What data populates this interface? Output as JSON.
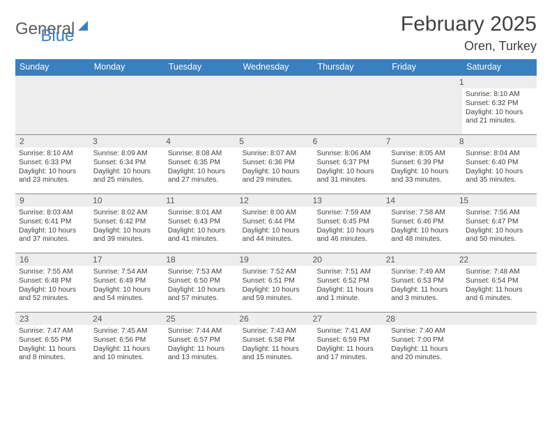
{
  "brand": {
    "word1": "General",
    "word2": "Blue"
  },
  "title": "February 2025",
  "location": "Oren, Turkey",
  "colors": {
    "accent": "#3a7fc0",
    "grey_bg": "#ededed",
    "text": "#404040",
    "rule": "#888888"
  },
  "days_of_week": [
    "Sunday",
    "Monday",
    "Tuesday",
    "Wednesday",
    "Thursday",
    "Friday",
    "Saturday"
  ],
  "weeks": [
    {
      "numbers": [
        "",
        "",
        "",
        "",
        "",
        "",
        "1"
      ],
      "details": [
        null,
        null,
        null,
        null,
        null,
        null,
        {
          "sunrise": "Sunrise: 8:10 AM",
          "sunset": "Sunset: 6:32 PM",
          "dl1": "Daylight: 10 hours",
          "dl2": "and 21 minutes."
        }
      ]
    },
    {
      "numbers": [
        "2",
        "3",
        "4",
        "5",
        "6",
        "7",
        "8"
      ],
      "details": [
        {
          "sunrise": "Sunrise: 8:10 AM",
          "sunset": "Sunset: 6:33 PM",
          "dl1": "Daylight: 10 hours",
          "dl2": "and 23 minutes."
        },
        {
          "sunrise": "Sunrise: 8:09 AM",
          "sunset": "Sunset: 6:34 PM",
          "dl1": "Daylight: 10 hours",
          "dl2": "and 25 minutes."
        },
        {
          "sunrise": "Sunrise: 8:08 AM",
          "sunset": "Sunset: 6:35 PM",
          "dl1": "Daylight: 10 hours",
          "dl2": "and 27 minutes."
        },
        {
          "sunrise": "Sunrise: 8:07 AM",
          "sunset": "Sunset: 6:36 PM",
          "dl1": "Daylight: 10 hours",
          "dl2": "and 29 minutes."
        },
        {
          "sunrise": "Sunrise: 8:06 AM",
          "sunset": "Sunset: 6:37 PM",
          "dl1": "Daylight: 10 hours",
          "dl2": "and 31 minutes."
        },
        {
          "sunrise": "Sunrise: 8:05 AM",
          "sunset": "Sunset: 6:39 PM",
          "dl1": "Daylight: 10 hours",
          "dl2": "and 33 minutes."
        },
        {
          "sunrise": "Sunrise: 8:04 AM",
          "sunset": "Sunset: 6:40 PM",
          "dl1": "Daylight: 10 hours",
          "dl2": "and 35 minutes."
        }
      ]
    },
    {
      "numbers": [
        "9",
        "10",
        "11",
        "12",
        "13",
        "14",
        "15"
      ],
      "details": [
        {
          "sunrise": "Sunrise: 8:03 AM",
          "sunset": "Sunset: 6:41 PM",
          "dl1": "Daylight: 10 hours",
          "dl2": "and 37 minutes."
        },
        {
          "sunrise": "Sunrise: 8:02 AM",
          "sunset": "Sunset: 6:42 PM",
          "dl1": "Daylight: 10 hours",
          "dl2": "and 39 minutes."
        },
        {
          "sunrise": "Sunrise: 8:01 AM",
          "sunset": "Sunset: 6:43 PM",
          "dl1": "Daylight: 10 hours",
          "dl2": "and 41 minutes."
        },
        {
          "sunrise": "Sunrise: 8:00 AM",
          "sunset": "Sunset: 6:44 PM",
          "dl1": "Daylight: 10 hours",
          "dl2": "and 44 minutes."
        },
        {
          "sunrise": "Sunrise: 7:59 AM",
          "sunset": "Sunset: 6:45 PM",
          "dl1": "Daylight: 10 hours",
          "dl2": "and 46 minutes."
        },
        {
          "sunrise": "Sunrise: 7:58 AM",
          "sunset": "Sunset: 6:46 PM",
          "dl1": "Daylight: 10 hours",
          "dl2": "and 48 minutes."
        },
        {
          "sunrise": "Sunrise: 7:56 AM",
          "sunset": "Sunset: 6:47 PM",
          "dl1": "Daylight: 10 hours",
          "dl2": "and 50 minutes."
        }
      ]
    },
    {
      "numbers": [
        "16",
        "17",
        "18",
        "19",
        "20",
        "21",
        "22"
      ],
      "details": [
        {
          "sunrise": "Sunrise: 7:55 AM",
          "sunset": "Sunset: 6:48 PM",
          "dl1": "Daylight: 10 hours",
          "dl2": "and 52 minutes."
        },
        {
          "sunrise": "Sunrise: 7:54 AM",
          "sunset": "Sunset: 6:49 PM",
          "dl1": "Daylight: 10 hours",
          "dl2": "and 54 minutes."
        },
        {
          "sunrise": "Sunrise: 7:53 AM",
          "sunset": "Sunset: 6:50 PM",
          "dl1": "Daylight: 10 hours",
          "dl2": "and 57 minutes."
        },
        {
          "sunrise": "Sunrise: 7:52 AM",
          "sunset": "Sunset: 6:51 PM",
          "dl1": "Daylight: 10 hours",
          "dl2": "and 59 minutes."
        },
        {
          "sunrise": "Sunrise: 7:51 AM",
          "sunset": "Sunset: 6:52 PM",
          "dl1": "Daylight: 11 hours",
          "dl2": "and 1 minute."
        },
        {
          "sunrise": "Sunrise: 7:49 AM",
          "sunset": "Sunset: 6:53 PM",
          "dl1": "Daylight: 11 hours",
          "dl2": "and 3 minutes."
        },
        {
          "sunrise": "Sunrise: 7:48 AM",
          "sunset": "Sunset: 6:54 PM",
          "dl1": "Daylight: 11 hours",
          "dl2": "and 6 minutes."
        }
      ]
    },
    {
      "numbers": [
        "23",
        "24",
        "25",
        "26",
        "27",
        "28",
        ""
      ],
      "details": [
        {
          "sunrise": "Sunrise: 7:47 AM",
          "sunset": "Sunset: 6:55 PM",
          "dl1": "Daylight: 11 hours",
          "dl2": "and 8 minutes."
        },
        {
          "sunrise": "Sunrise: 7:45 AM",
          "sunset": "Sunset: 6:56 PM",
          "dl1": "Daylight: 11 hours",
          "dl2": "and 10 minutes."
        },
        {
          "sunrise": "Sunrise: 7:44 AM",
          "sunset": "Sunset: 6:57 PM",
          "dl1": "Daylight: 11 hours",
          "dl2": "and 13 minutes."
        },
        {
          "sunrise": "Sunrise: 7:43 AM",
          "sunset": "Sunset: 6:58 PM",
          "dl1": "Daylight: 11 hours",
          "dl2": "and 15 minutes."
        },
        {
          "sunrise": "Sunrise: 7:41 AM",
          "sunset": "Sunset: 6:59 PM",
          "dl1": "Daylight: 11 hours",
          "dl2": "and 17 minutes."
        },
        {
          "sunrise": "Sunrise: 7:40 AM",
          "sunset": "Sunset: 7:00 PM",
          "dl1": "Daylight: 11 hours",
          "dl2": "and 20 minutes."
        },
        null
      ]
    }
  ]
}
